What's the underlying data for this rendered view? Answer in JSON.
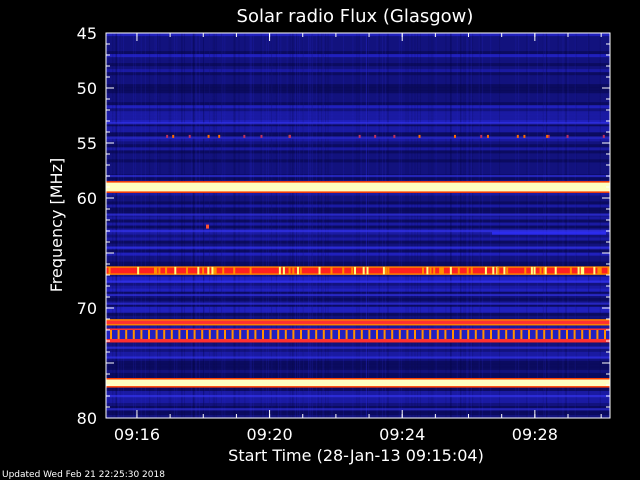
{
  "chart_data": {
    "type": "heatmap",
    "title": "Solar radio Flux (Glasgow)",
    "ylabel": "Frequency [MHz]",
    "xlabel": "Start Time (28-Jan-13 09:15:04)",
    "ylim": [
      45,
      80
    ],
    "y_inverted": true,
    "yticks": [
      45,
      50,
      55,
      60,
      65,
      70,
      75,
      80
    ],
    "ytick_labels": [
      "45",
      "50",
      "55",
      "60",
      "",
      "70",
      "",
      "80"
    ],
    "xticks": [
      "09:16",
      "09:20",
      "09:24",
      "09:28"
    ],
    "xlim": [
      "09:15:04",
      "09:30:16"
    ],
    "background_colors": [
      "#0b0b5a",
      "#13137e",
      "#1c1ca8",
      "#2323c8"
    ],
    "bands": [
      {
        "freq": 59.0,
        "width": 0.8,
        "color": "#ffffc0",
        "edge_color": "#ff4000"
      },
      {
        "freq": 76.8,
        "width": 0.6,
        "color": "#ffffc0",
        "edge_color": "#ff4000"
      },
      {
        "freq": 66.6,
        "width": 0.5,
        "color": "#ff2020",
        "edge_color": "#ff8000",
        "speckled": true
      },
      {
        "freq": 71.3,
        "width": 0.3,
        "color": "#ff3030",
        "edge_color": "#ff8000"
      },
      {
        "freq": 72.5,
        "width": 1.0,
        "color": "#ff9000",
        "edge_color": "#ff3030",
        "pulsed": true
      }
    ],
    "faint_bands": [
      53.2,
      54.5,
      58.0,
      61.5,
      63.0,
      64.5,
      67.6,
      68.8,
      69.6,
      73.6,
      74.5,
      78.0,
      79.2
    ]
  },
  "footer": {
    "text": "Updated Wed Feb 21 22:25:30 2018"
  }
}
